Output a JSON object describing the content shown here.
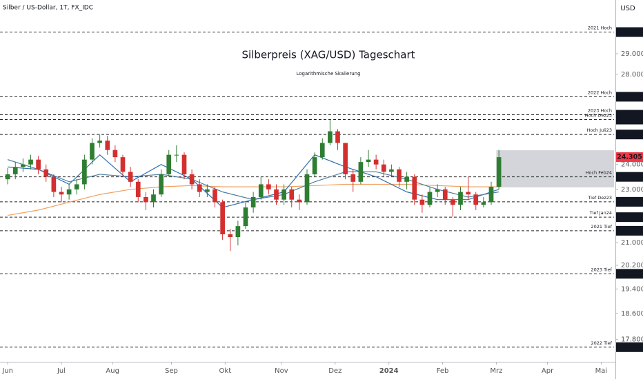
{
  "chart_data": {
    "type": "candlestick",
    "symbol_label": "Silber / US-Dollar, 1T, FX_IDC",
    "currency": "USD",
    "title": "Silberpreis (XAG/USD) Tageschart",
    "subtitle": "Logarithmische Skalierung",
    "log_scale": true,
    "grid": false,
    "up_color": "#2e7d32",
    "down_color": "#d32f2f",
    "xlim": [
      -3,
      237
    ],
    "xticks": [
      {
        "value": 0,
        "label": "Jun"
      },
      {
        "value": 21,
        "label": "Jul"
      },
      {
        "value": 41,
        "label": "Aug"
      },
      {
        "value": 64,
        "label": "Sep"
      },
      {
        "value": 85,
        "label": "Okt"
      },
      {
        "value": 107,
        "label": "Nov"
      },
      {
        "value": 128,
        "label": "Dez"
      },
      {
        "value": 149,
        "label": "2024"
      },
      {
        "value": 170,
        "label": "Feb"
      },
      {
        "value": 191,
        "label": "Mrz"
      },
      {
        "value": 211,
        "label": "Apr"
      },
      {
        "value": 232,
        "label": "Mai"
      }
    ],
    "ylim": [
      17.13,
      31.79
    ],
    "yticks": [
      {
        "value": 29,
        "label": "29.000"
      },
      {
        "value": 28,
        "label": "28.000"
      },
      {
        "value": 24,
        "label": "24.000"
      },
      {
        "value": 23,
        "label": "23.000"
      },
      {
        "value": 21,
        "label": "21.000"
      },
      {
        "value": 20.2,
        "label": "20.200"
      },
      {
        "value": 19.4,
        "label": "19.400"
      },
      {
        "value": 18.6,
        "label": "18.600"
      },
      {
        "value": 17.8,
        "label": "17.800"
      }
    ],
    "x": [
      0,
      3,
      6,
      9,
      12,
      15,
      18,
      21,
      24,
      27,
      30,
      33,
      36,
      39,
      42,
      45,
      48,
      51,
      54,
      57,
      60,
      63,
      66,
      69,
      72,
      75,
      78,
      81,
      84,
      87,
      90,
      93,
      96,
      99,
      102,
      105,
      108,
      111,
      114,
      117,
      120,
      123,
      126,
      129,
      132,
      135,
      138,
      141,
      144,
      147,
      150,
      153,
      156,
      159,
      162,
      165,
      168,
      171,
      174,
      177,
      180,
      183,
      186,
      189,
      192
    ],
    "open": [
      23.4,
      23.6,
      23.9,
      24.0,
      24.2,
      23.8,
      23.5,
      22.9,
      22.8,
      23.0,
      23.2,
      24.2,
      24.9,
      25.0,
      24.6,
      24.3,
      23.7,
      23.3,
      22.7,
      22.5,
      22.8,
      23.6,
      24.4,
      24.4,
      23.6,
      23.2,
      22.9,
      23.0,
      22.5,
      21.3,
      21.2,
      21.6,
      22.3,
      22.7,
      23.2,
      23.0,
      22.6,
      23.0,
      22.6,
      22.5,
      23.6,
      24.3,
      24.9,
      25.4,
      24.9,
      23.6,
      23.3,
      24.1,
      24.2,
      24.0,
      23.7,
      23.8,
      23.3,
      23.5,
      22.6,
      22.4,
      22.9,
      23.0,
      22.6,
      22.4,
      22.9,
      22.8,
      22.4,
      22.5,
      23.1
    ],
    "high": [
      23.85,
      24.1,
      24.25,
      24.4,
      24.35,
      24.0,
      23.6,
      23.1,
      23.2,
      23.4,
      24.4,
      25.1,
      25.26,
      25.2,
      24.8,
      24.4,
      23.9,
      23.4,
      22.9,
      23.0,
      23.8,
      24.6,
      24.8,
      24.5,
      23.8,
      23.4,
      23.2,
      23.1,
      22.6,
      21.5,
      21.8,
      22.5,
      22.9,
      23.5,
      23.4,
      23.2,
      23.2,
      23.1,
      22.8,
      23.8,
      24.5,
      25.1,
      25.914,
      25.5,
      24.9,
      23.8,
      24.3,
      24.6,
      24.4,
      24.2,
      24.0,
      23.9,
      23.7,
      23.6,
      22.8,
      23.1,
      23.2,
      23.1,
      22.7,
      23.1,
      23.497,
      22.9,
      22.7,
      23.3,
      24.6
    ],
    "low": [
      23.2,
      23.4,
      23.7,
      23.8,
      23.6,
      23.3,
      22.7,
      22.5,
      22.6,
      22.8,
      23.0,
      24.0,
      24.7,
      24.4,
      24.1,
      23.5,
      23.1,
      22.5,
      22.2,
      22.3,
      22.7,
      23.5,
      24.1,
      23.4,
      23.0,
      22.7,
      22.7,
      22.3,
      21.1,
      20.7,
      20.9,
      21.5,
      22.1,
      22.6,
      22.8,
      22.4,
      22.4,
      22.3,
      22.2,
      22.4,
      23.5,
      24.2,
      24.8,
      24.6,
      23.4,
      22.9,
      23.2,
      23.9,
      23.8,
      23.5,
      23.5,
      23.1,
      23.0,
      22.4,
      22.1,
      22.3,
      22.7,
      22.4,
      21.95,
      22.2,
      22.6,
      22.2,
      22.3,
      22.4,
      23.0
    ],
    "close": [
      23.6,
      23.9,
      24.0,
      24.2,
      23.8,
      23.5,
      22.9,
      22.8,
      23.0,
      23.2,
      24.2,
      24.9,
      25.0,
      24.6,
      24.3,
      23.7,
      23.3,
      22.7,
      22.5,
      22.8,
      23.6,
      24.4,
      24.4,
      23.6,
      23.2,
      22.9,
      23.0,
      22.5,
      21.3,
      21.2,
      21.6,
      22.3,
      22.7,
      23.2,
      23.0,
      22.6,
      23.0,
      22.6,
      22.5,
      23.6,
      24.3,
      24.9,
      25.4,
      24.9,
      23.6,
      23.3,
      24.1,
      24.2,
      24.0,
      23.7,
      23.8,
      23.3,
      23.5,
      22.6,
      22.4,
      22.9,
      23.0,
      22.6,
      22.4,
      22.9,
      22.8,
      22.4,
      22.5,
      23.1,
      24.3
    ],
    "moving_averages": [
      {
        "color": "#f0a060",
        "x": [
          0,
          12,
          24,
          36,
          48,
          60,
          72,
          84,
          96,
          108,
          120,
          132,
          144,
          156,
          168,
          180,
          192
        ],
        "values": [
          22.0,
          22.2,
          22.5,
          22.8,
          23.0,
          23.1,
          23.15,
          23.1,
          23.1,
          23.1,
          23.15,
          23.2,
          23.2,
          23.2,
          23.15,
          23.1,
          23.1
        ]
      },
      {
        "color": "#2f6fb0",
        "x": [
          0,
          12,
          24,
          36,
          48,
          60,
          72,
          84,
          96,
          108,
          120,
          132,
          144,
          156,
          168,
          180,
          192
        ],
        "values": [
          23.9,
          23.8,
          23.2,
          24.4,
          23.3,
          24.0,
          23.4,
          22.3,
          22.6,
          22.9,
          24.4,
          23.9,
          23.5,
          22.9,
          22.6,
          22.6,
          23.0
        ]
      },
      {
        "color": "#4f7f9f",
        "x": [
          0,
          12,
          24,
          36,
          48,
          60,
          72,
          84,
          96,
          108,
          120,
          132,
          144,
          156,
          168,
          180,
          192
        ],
        "values": [
          24.2,
          23.8,
          23.3,
          23.6,
          23.5,
          23.6,
          23.4,
          22.9,
          22.6,
          22.8,
          23.3,
          23.7,
          23.7,
          23.4,
          23.0,
          22.7,
          22.9
        ]
      }
    ],
    "range_box": {
      "xlim": [
        191,
        237
      ],
      "ylim": [
        23.08,
        24.59
      ]
    },
    "levels": [
      {
        "label": "2021 Hoch",
        "value": 30.094
      },
      {
        "label": "2022 Hoch",
        "value": 26.945
      },
      {
        "label": "2023 Hoch",
        "value": 26.129
      },
      {
        "label": "Hoch Dez23",
        "value": 25.914
      },
      {
        "label": "Hoch Juli23",
        "value": 25.262
      },
      {
        "label": "Hoch Feb24",
        "value": 23.497
      },
      {
        "label": "Tief Dez23",
        "value": 22.516
      },
      {
        "label": "Tief Jan24",
        "value": 21.933
      },
      {
        "label": "2021 Tief",
        "value": 21.429
      },
      {
        "label": "2023 Tief",
        "value": 19.909
      },
      {
        "label": "2022 Tief",
        "value": 17.563
      }
    ],
    "last_price": 24.305,
    "last_price_color": "#f23645"
  }
}
